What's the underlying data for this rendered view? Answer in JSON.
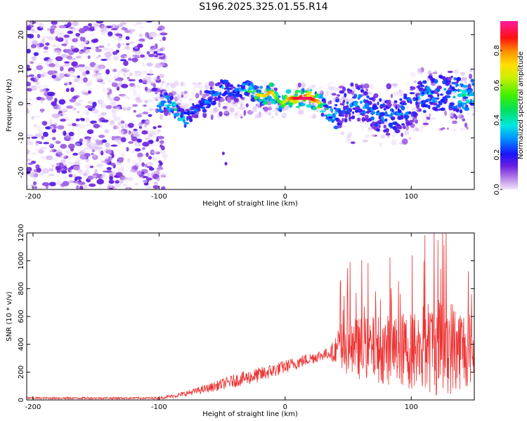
{
  "title": "S196.2025.325.01.55.R14",
  "chart_data": [
    {
      "type": "heatmap",
      "name": "spectrogram",
      "xlabel": "Height of straight line (km)",
      "ylabel": "Frequency (Hz)",
      "xlim": [
        -205,
        150
      ],
      "ylim": [
        -25,
        24
      ],
      "xticks": [
        -200,
        -100,
        0,
        100
      ],
      "yticks": [
        -20,
        -10,
        0,
        10,
        20
      ],
      "colorbar": {
        "label": "Normalized spectral amplitude",
        "range": [
          0.0,
          0.97
        ],
        "ticks": [
          0.0,
          0.2,
          0.4,
          0.6,
          0.8
        ]
      },
      "ridge": [
        {
          "x": -100,
          "y": 0,
          "a": 0.45
        },
        {
          "x": -93,
          "y": 0.5,
          "a": 0.55
        },
        {
          "x": -88,
          "y": -1,
          "a": 0.5
        },
        {
          "x": -84,
          "y": -3,
          "a": 0.45
        },
        {
          "x": -80,
          "y": -5,
          "a": 0.45
        },
        {
          "x": -75,
          "y": -3,
          "a": 0.35
        },
        {
          "x": -68,
          "y": -1,
          "a": 0.3
        },
        {
          "x": -62,
          "y": 1,
          "a": 0.35
        },
        {
          "x": -55,
          "y": 3,
          "a": 0.35
        },
        {
          "x": -48,
          "y": 5,
          "a": 0.35
        },
        {
          "x": -40,
          "y": 3,
          "a": 0.3
        },
        {
          "x": -32,
          "y": 4,
          "a": 0.45
        },
        {
          "x": -27,
          "y": 3.5,
          "a": 0.6
        },
        {
          "x": -22,
          "y": 2.5,
          "a": 0.7
        },
        {
          "x": -16,
          "y": 2.2,
          "a": 0.75
        },
        {
          "x": -11,
          "y": 3.5,
          "a": 0.8
        },
        {
          "x": -6,
          "y": 1,
          "a": 0.5
        },
        {
          "x": -2,
          "y": 0,
          "a": 0.6
        },
        {
          "x": 3,
          "y": 1.5,
          "a": 0.8
        },
        {
          "x": 8,
          "y": 1.5,
          "a": 0.9
        },
        {
          "x": 14,
          "y": 1.5,
          "a": 0.97
        },
        {
          "x": 20,
          "y": 1.5,
          "a": 0.95
        },
        {
          "x": 26,
          "y": 0.5,
          "a": 0.8
        },
        {
          "x": 30,
          "y": -1,
          "a": 0.55
        },
        {
          "x": 35,
          "y": -2.5,
          "a": 0.5
        },
        {
          "x": 40,
          "y": -3.5,
          "a": 0.4
        },
        {
          "x": 45,
          "y": -1,
          "a": 0.3
        },
        {
          "x": 55,
          "y": 1,
          "a": 0.35
        },
        {
          "x": 65,
          "y": -1,
          "a": 0.35
        },
        {
          "x": 75,
          "y": -3,
          "a": 0.35
        },
        {
          "x": 85,
          "y": -5,
          "a": 0.35
        },
        {
          "x": 95,
          "y": -2,
          "a": 0.35
        },
        {
          "x": 105,
          "y": 1,
          "a": 0.35
        },
        {
          "x": 115,
          "y": 3,
          "a": 0.4
        },
        {
          "x": 125,
          "y": 3,
          "a": 0.35
        },
        {
          "x": 135,
          "y": 3,
          "a": 0.45
        },
        {
          "x": 142,
          "y": 2.5,
          "a": 0.5
        },
        {
          "x": 148,
          "y": 3,
          "a": 0.45
        }
      ]
    },
    {
      "type": "line",
      "name": "snr",
      "xlabel": "Height of straight line (km)",
      "ylabel": "SNR (10 * v/v)",
      "xlim": [
        -205,
        150
      ],
      "ylim": [
        0,
        1200
      ],
      "xticks": [
        -200,
        -100,
        0,
        100
      ],
      "yticks": [
        0,
        200,
        400,
        600,
        800,
        1000,
        1200
      ],
      "line_color": "#ee3333",
      "envelope": [
        {
          "x": -205,
          "base": 12,
          "spread": 18
        },
        {
          "x": -100,
          "base": 12,
          "spread": 18
        },
        {
          "x": -85,
          "base": 30,
          "spread": 40
        },
        {
          "x": -60,
          "base": 80,
          "spread": 80
        },
        {
          "x": -40,
          "base": 130,
          "spread": 120
        },
        {
          "x": -20,
          "base": 170,
          "spread": 140
        },
        {
          "x": 0,
          "base": 230,
          "spread": 120
        },
        {
          "x": 20,
          "base": 290,
          "spread": 110
        },
        {
          "x": 35,
          "base": 330,
          "spread": 100
        },
        {
          "x": 45,
          "base": 330,
          "spread": 380
        },
        {
          "x": 70,
          "base": 320,
          "spread": 430
        },
        {
          "x": 100,
          "base": 300,
          "spread": 520
        },
        {
          "x": 125,
          "base": 320,
          "spread": 700
        },
        {
          "x": 150,
          "base": 310,
          "spread": 450
        }
      ]
    }
  ]
}
